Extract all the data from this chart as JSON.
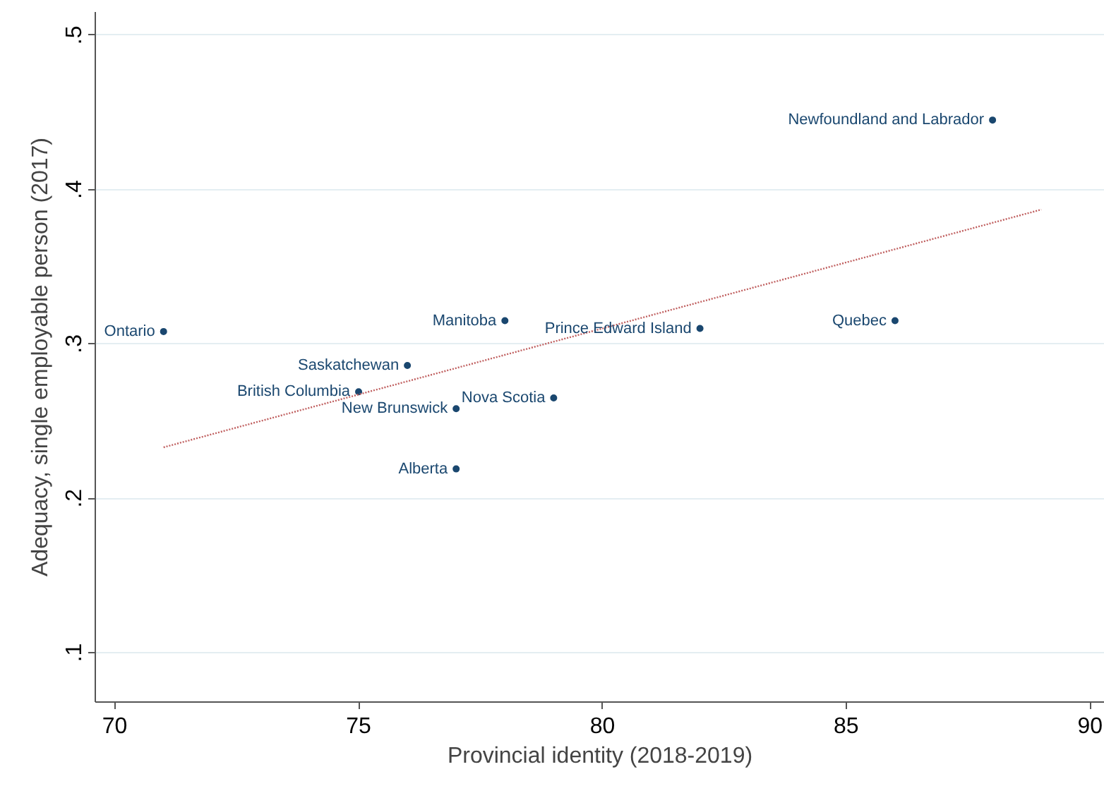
{
  "chart_data": {
    "type": "scatter",
    "xlabel": "Provincial identity (2018-2019)",
    "ylabel": "Adequacy, single employable person (2017)",
    "xlim": [
      69.6,
      90.3
    ],
    "ylim": [
      0.068,
      0.515
    ],
    "xticks": [
      70,
      75,
      80,
      85,
      90
    ],
    "yticks": [
      {
        "value": 0.1,
        "label": ".1"
      },
      {
        "value": 0.2,
        "label": ".2"
      },
      {
        "value": 0.3,
        "label": ".3"
      },
      {
        "value": 0.4,
        "label": ".4"
      },
      {
        "value": 0.5,
        "label": ".5"
      }
    ],
    "grid": "y",
    "marker": "circle",
    "series": [
      {
        "color": "#1a476f",
        "x": [
          71,
          75,
          76,
          77,
          77,
          78,
          79,
          82,
          86,
          88
        ],
        "values": [
          0.308,
          0.269,
          0.286,
          0.258,
          0.219,
          0.315,
          0.265,
          0.31,
          0.315,
          0.445
        ]
      },
      {
        "type": "line",
        "marker": "none",
        "color": "#c06060",
        "line_style": "dotted",
        "x": [
          71,
          89
        ],
        "values": [
          0.233,
          0.387
        ]
      }
    ],
    "annotations": [
      {
        "text": "Ontario",
        "x": 71,
        "y": 0.308
      },
      {
        "text": "British Columbia",
        "x": 75,
        "y": 0.269
      },
      {
        "text": "Saskatchewan",
        "x": 76,
        "y": 0.286
      },
      {
        "text": "New Brunswick",
        "x": 77,
        "y": 0.258
      },
      {
        "text": "Alberta",
        "x": 77,
        "y": 0.219
      },
      {
        "text": "Manitoba",
        "x": 78,
        "y": 0.315
      },
      {
        "text": "Nova Scotia",
        "x": 79,
        "y": 0.265
      },
      {
        "text": "Prince Edward Island",
        "x": 82,
        "y": 0.31
      },
      {
        "text": "Quebec",
        "x": 86,
        "y": 0.315
      },
      {
        "text": "Newfoundland and Labrador",
        "x": 88,
        "y": 0.445
      }
    ]
  }
}
